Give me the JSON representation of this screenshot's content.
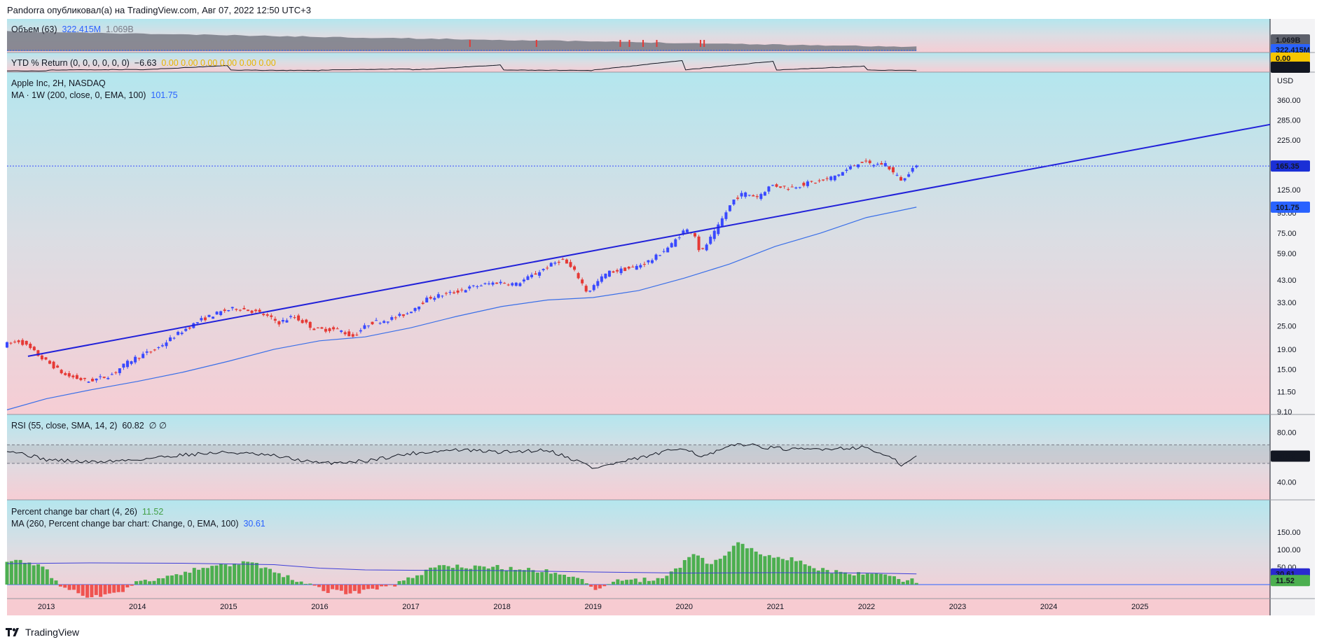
{
  "header": {
    "text": "Pandorra опубликовал(а) на TradingView.com, Авг 07, 2022 12:50 UTC+3"
  },
  "footer": {
    "brand": "TradingView"
  },
  "colors": {
    "up": "#3949ff",
    "down": "#e53935",
    "trendline": "#2121d9",
    "ma_line": "#3a6fe8",
    "vol_bar_up": "#4caf50",
    "vol_bar_down": "#ef5350",
    "price_tag": "#1a2fd6",
    "ma_tag": "#2962ff",
    "rsi_tag": "#131722",
    "pc_tag": "#4caf50"
  },
  "panes": {
    "volume": {
      "label": "Объем (63)",
      "v1": "322.415M",
      "v2": "1.069B",
      "tag_top": "1.069B",
      "tag_bottom": "322.415M"
    },
    "ytd": {
      "label": "YTD % Return (0, 0, 0, 0, 0, 0)",
      "v1": "−6.63",
      "v_rest": "0.00  0.00  0.00  0.00  0.00  0.00",
      "tag_top": "0.00",
      "tag_bottom": "−6.63"
    },
    "main": {
      "symbol": "Apple Inc, 2H, NASDAQ",
      "ma_label": "MA · 1W (200, close, 0, EMA, 100)",
      "ma_value": "101.75",
      "currency": "USD",
      "price_tag": "165.35",
      "ma_tag": "101.75"
    },
    "rsi": {
      "label": "RSI (55, close, SMA, 14, 2)",
      "value": "60.82",
      "extra": "∅ ∅",
      "tag": "60.82"
    },
    "pct": {
      "label": "Percent change bar chart (4, 26)",
      "value": "11.52",
      "ma_label": "MA (260, Percent change bar chart: Change, 0, EMA, 100)",
      "ma_value": "30.61",
      "tag_ma": "30.61",
      "tag_val": "11.52"
    }
  },
  "chart_data": {
    "type": "line",
    "title": "Apple Inc, 2H, NASDAQ",
    "y_scale": "log",
    "y_unit": "USD",
    "price_ticks": [
      9.1,
      11.5,
      15.0,
      19.0,
      25.0,
      33.0,
      43.0,
      59.0,
      75.0,
      95.0,
      125.0,
      165.35,
      225.0,
      285.0,
      360.0
    ],
    "rsi_ticks": [
      40.0,
      80.0
    ],
    "pct_ticks": [
      50.0,
      100.0,
      150.0
    ],
    "x_ticks": [
      "2013",
      "2014",
      "2015",
      "2016",
      "2017",
      "2018",
      "2019",
      "2020",
      "2021",
      "2022",
      "2023",
      "2024",
      "2025"
    ],
    "x_range": [
      2012.57,
      2026.43
    ],
    "series": [
      {
        "name": "Apple Inc",
        "x": [
          2012.57,
          2012.75,
          2013.0,
          2013.25,
          2013.5,
          2013.75,
          2014.0,
          2014.25,
          2014.5,
          2014.75,
          2015.0,
          2015.15,
          2015.4,
          2015.6,
          2015.75,
          2016.0,
          2016.25,
          2016.4,
          2016.6,
          2016.8,
          2017.0,
          2017.25,
          2017.5,
          2017.75,
          2018.0,
          2018.2,
          2018.4,
          2018.7,
          2018.85,
          2018.98,
          2019.2,
          2019.5,
          2019.7,
          2019.9,
          2020.05,
          2020.15,
          2020.22,
          2020.4,
          2020.6,
          2020.7,
          2020.85,
          2021.0,
          2021.2,
          2021.4,
          2021.6,
          2021.8,
          2021.98,
          2022.1,
          2022.25,
          2022.35,
          2022.45,
          2022.55
        ],
        "values": [
          20,
          21,
          17,
          14,
          13,
          14,
          17,
          19,
          23,
          27,
          30,
          31,
          29,
          26,
          28,
          24,
          24,
          22,
          26,
          27,
          29,
          35,
          37,
          40,
          42,
          41,
          46,
          55,
          47,
          37,
          47,
          50,
          55,
          65,
          78,
          76,
          58,
          78,
          113,
          120,
          115,
          132,
          128,
          135,
          140,
          155,
          175,
          168,
          170,
          150,
          138,
          165.35
        ]
      },
      {
        "name": "MA · 1W (200, close, 0, EMA, 100)",
        "x": [
          2012.57,
          2013.0,
          2013.5,
          2014.0,
          2014.5,
          2015.0,
          2015.5,
          2016.0,
          2016.5,
          2017.0,
          2017.5,
          2018.0,
          2018.5,
          2019.0,
          2019.5,
          2020.0,
          2020.5,
          2021.0,
          2021.5,
          2022.0,
          2022.55
        ],
        "values": [
          9.3,
          10.6,
          11.8,
          13.0,
          14.5,
          16.5,
          19.0,
          21.0,
          22.0,
          24.5,
          28.0,
          31.5,
          34.0,
          35.0,
          38.0,
          44.0,
          52.0,
          64.0,
          75.0,
          90.0,
          101.75
        ]
      },
      {
        "name": "Trendline",
        "x": [
          2012.8,
          2026.43
        ],
        "values": [
          17.5,
          270
        ]
      },
      {
        "name": "RSI (55, close, SMA, 14, 2)",
        "x": [
          2012.57,
          2013.0,
          2013.5,
          2014.0,
          2014.5,
          2015.0,
          2015.5,
          2016.0,
          2016.5,
          2017.0,
          2017.5,
          2018.0,
          2018.5,
          2018.9,
          2019.0,
          2019.5,
          2020.0,
          2020.2,
          2020.6,
          2020.9,
          2021.2,
          2021.6,
          2022.0,
          2022.3,
          2022.4,
          2022.55
        ],
        "values": [
          66,
          58,
          56,
          58,
          62,
          64,
          61,
          55,
          57,
          63,
          66,
          64,
          66,
          55,
          51,
          59,
          68,
          60,
          71,
          68,
          66,
          67,
          68,
          58,
          53,
          60.82
        ]
      },
      {
        "name": "Percent change bar chart (4, 26)",
        "x": [
          2012.57,
          2012.8,
          2013.0,
          2013.2,
          2013.4,
          2013.6,
          2013.8,
          2014.0,
          2014.3,
          2014.6,
          2014.9,
          2015.1,
          2015.3,
          2015.5,
          2015.7,
          2015.9,
          2016.1,
          2016.3,
          2016.5,
          2016.7,
          2016.9,
          2017.1,
          2017.3,
          2017.6,
          2017.9,
          2018.2,
          2018.5,
          2018.8,
          2019.0,
          2019.2,
          2019.5,
          2019.8,
          2020.0,
          2020.1,
          2020.25,
          2020.4,
          2020.6,
          2020.8,
          2021.0,
          2021.2,
          2021.4,
          2021.6,
          2021.8,
          2022.0,
          2022.2,
          2022.4,
          2022.55
        ],
        "values": [
          72,
          68,
          40,
          -10,
          -30,
          -32,
          -25,
          5,
          20,
          40,
          55,
          62,
          58,
          35,
          15,
          2,
          -18,
          -24,
          -20,
          -8,
          5,
          30,
          55,
          48,
          52,
          42,
          38,
          25,
          -12,
          8,
          12,
          18,
          62,
          95,
          58,
          72,
          125,
          92,
          78,
          72,
          52,
          38,
          30,
          33,
          26,
          15,
          11.52
        ]
      },
      {
        "name": "MA (260, Percent change bar chart: Change, 0, EMA, 100)",
        "x": [
          2012.57,
          2013.5,
          2014.5,
          2015.5,
          2016.0,
          2016.5,
          2017.0,
          2018.0,
          2019.0,
          2020.0,
          2021.0,
          2022.0,
          2022.55
        ],
        "values": [
          60,
          62,
          61,
          57,
          47,
          42,
          41,
          40,
          36,
          33,
          34,
          33,
          30.61
        ]
      }
    ],
    "grid": false,
    "legend": "top-left"
  }
}
